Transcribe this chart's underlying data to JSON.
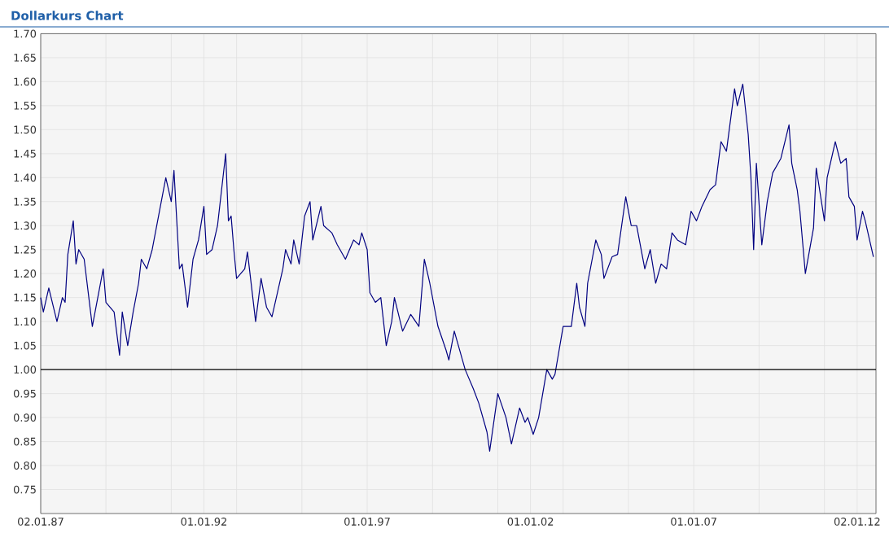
{
  "chart_data": {
    "type": "line",
    "title": "Dollarkurs Chart",
    "xlim": [
      "1987-01-02",
      "2012-07-30"
    ],
    "ylim": [
      0.7,
      1.7
    ],
    "xticks": [
      {
        "value": "1987-01-02",
        "label": "02.01.87"
      },
      {
        "value": "1989-01-01",
        "label": null
      },
      {
        "value": "1991-01-01",
        "label": null
      },
      {
        "value": "1992-01-01",
        "label": "01.01.92"
      },
      {
        "value": "1993-01-01",
        "label": null
      },
      {
        "value": "1995-01-01",
        "label": null
      },
      {
        "value": "1997-01-01",
        "label": "01.01.97"
      },
      {
        "value": "1999-01-01",
        "label": null
      },
      {
        "value": "2001-01-01",
        "label": null
      },
      {
        "value": "2002-01-01",
        "label": "01.01.02"
      },
      {
        "value": "2003-01-01",
        "label": null
      },
      {
        "value": "2005-01-01",
        "label": null
      },
      {
        "value": "2007-01-01",
        "label": "01.01.07"
      },
      {
        "value": "2009-01-01",
        "label": null
      },
      {
        "value": "2011-01-01",
        "label": null
      },
      {
        "value": "2012-01-02",
        "label": "02.01.12"
      }
    ],
    "yticks": [
      {
        "value": 0.75,
        "label": "0.75"
      },
      {
        "value": 0.8,
        "label": "0.80"
      },
      {
        "value": 0.85,
        "label": "0.85"
      },
      {
        "value": 0.9,
        "label": "0.90"
      },
      {
        "value": 0.95,
        "label": "0.95"
      },
      {
        "value": 1.0,
        "label": "1.00"
      },
      {
        "value": 1.05,
        "label": "1.05"
      },
      {
        "value": 1.1,
        "label": "1.10"
      },
      {
        "value": 1.15,
        "label": "1.15"
      },
      {
        "value": 1.2,
        "label": "1.20"
      },
      {
        "value": 1.25,
        "label": "1.25"
      },
      {
        "value": 1.3,
        "label": "1.30"
      },
      {
        "value": 1.35,
        "label": "1.35"
      },
      {
        "value": 1.4,
        "label": "1.40"
      },
      {
        "value": 1.45,
        "label": "1.45"
      },
      {
        "value": 1.5,
        "label": "1.50"
      },
      {
        "value": 1.55,
        "label": "1.55"
      },
      {
        "value": 1.6,
        "label": "1.60"
      },
      {
        "value": 1.65,
        "label": "1.65"
      },
      {
        "value": 1.7,
        "label": "1.70"
      }
    ],
    "grid": true,
    "ref_lines": [
      {
        "axis": "y",
        "value": 1.0,
        "color": "#000000"
      }
    ],
    "series": [
      {
        "color": "#000080",
        "x": [
          "1987-01-02",
          "1987-02",
          "1987-04",
          "1987-07",
          "1987-09",
          "1987-10",
          "1987-11",
          "1988-01",
          "1988-02",
          "1988-03",
          "1988-05",
          "1988-08",
          "1988-09",
          "1988-12",
          "1989-01",
          "1989-04",
          "1989-06",
          "1989-07",
          "1989-09",
          "1989-11",
          "1990-01",
          "1990-02",
          "1990-04",
          "1990-06",
          "1990-09",
          "1990-11",
          "1991-01",
          "1991-02",
          "1991-04",
          "1991-05",
          "1991-07",
          "1991-08",
          "1991-09",
          "1991-11",
          "1992-01",
          "1992-02",
          "1992-04",
          "1992-06",
          "1992-08",
          "1992-09",
          "1992-10",
          "1992-11",
          "1992-12",
          "1993-01",
          "1993-04",
          "1993-05",
          "1993-08",
          "1993-10",
          "1993-12",
          "1994-02",
          "1994-04",
          "1994-06",
          "1994-07",
          "1994-09",
          "1994-10",
          "1994-12",
          "1995-02",
          "1995-04",
          "1995-05",
          "1995-08",
          "1995-09",
          "1995-12",
          "1996-02",
          "1996-05",
          "1996-08",
          "1996-10",
          "1996-11",
          "1997-01",
          "1997-02",
          "1997-04",
          "1997-06",
          "1997-08",
          "1997-10",
          "1997-11",
          "1998-02",
          "1998-05",
          "1998-08",
          "1998-10",
          "1998-12",
          "1999-03",
          "1999-06",
          "1999-07",
          "1999-09",
          "2000-01",
          "2000-04",
          "2000-06",
          "2000-09",
          "2000-10",
          "2001-01",
          "2001-04",
          "2001-06",
          "2001-09",
          "2001-11",
          "2001-12",
          "2002-02",
          "2002-04",
          "2002-07",
          "2002-09",
          "2002-10",
          "2003-01",
          "2003-04",
          "2003-06",
          "2003-07",
          "2003-09",
          "2003-10",
          "2004-01",
          "2004-03",
          "2004-04",
          "2004-07",
          "2004-09",
          "2004-12",
          "2005-02",
          "2005-04",
          "2005-07",
          "2005-09",
          "2005-11",
          "2006-01",
          "2006-03",
          "2006-05",
          "2006-07",
          "2006-10",
          "2006-12",
          "2007-02",
          "2007-04",
          "2007-07",
          "2007-09",
          "2007-11",
          "2008-01",
          "2008-04",
          "2008-05",
          "2008-07",
          "2008-09",
          "2008-10",
          "2008-11",
          "2008-12",
          "2009-02",
          "2009-04",
          "2009-06",
          "2009-09",
          "2009-12",
          "2010-01",
          "2010-03",
          "2010-04",
          "2010-06",
          "2010-09",
          "2010-10",
          "2011-01",
          "2011-02",
          "2011-05",
          "2011-07",
          "2011-09",
          "2011-10",
          "2011-12",
          "2012-01",
          "2012-03",
          "2012-04",
          "2012-06",
          "2012-07"
        ],
        "values": [
          1.15,
          1.12,
          1.17,
          1.1,
          1.15,
          1.14,
          1.24,
          1.31,
          1.22,
          1.25,
          1.23,
          1.09,
          1.12,
          1.21,
          1.14,
          1.12,
          1.03,
          1.12,
          1.05,
          1.12,
          1.18,
          1.23,
          1.21,
          1.25,
          1.34,
          1.4,
          1.35,
          1.415,
          1.21,
          1.22,
          1.13,
          1.18,
          1.23,
          1.27,
          1.34,
          1.24,
          1.25,
          1.3,
          1.4,
          1.45,
          1.31,
          1.32,
          1.25,
          1.19,
          1.21,
          1.245,
          1.1,
          1.19,
          1.13,
          1.11,
          1.16,
          1.21,
          1.25,
          1.22,
          1.27,
          1.22,
          1.32,
          1.35,
          1.27,
          1.34,
          1.3,
          1.285,
          1.26,
          1.23,
          1.27,
          1.26,
          1.285,
          1.25,
          1.16,
          1.14,
          1.15,
          1.05,
          1.1,
          1.15,
          1.08,
          1.115,
          1.09,
          1.23,
          1.18,
          1.09,
          1.04,
          1.02,
          1.08,
          1.0,
          0.96,
          0.93,
          0.87,
          0.83,
          0.95,
          0.9,
          0.845,
          0.92,
          0.89,
          0.9,
          0.865,
          0.9,
          1.0,
          0.98,
          0.99,
          1.09,
          1.09,
          1.18,
          1.13,
          1.09,
          1.18,
          1.27,
          1.24,
          1.19,
          1.235,
          1.24,
          1.36,
          1.3,
          1.3,
          1.21,
          1.25,
          1.18,
          1.22,
          1.21,
          1.285,
          1.27,
          1.26,
          1.33,
          1.31,
          1.34,
          1.375,
          1.385,
          1.475,
          1.455,
          1.585,
          1.55,
          1.595,
          1.49,
          1.4,
          1.25,
          1.43,
          1.26,
          1.35,
          1.41,
          1.44,
          1.51,
          1.43,
          1.375,
          1.33,
          1.2,
          1.295,
          1.42,
          1.31,
          1.4,
          1.475,
          1.43,
          1.44,
          1.36,
          1.34,
          1.27,
          1.33,
          1.31,
          1.26,
          1.235
        ]
      }
    ]
  }
}
